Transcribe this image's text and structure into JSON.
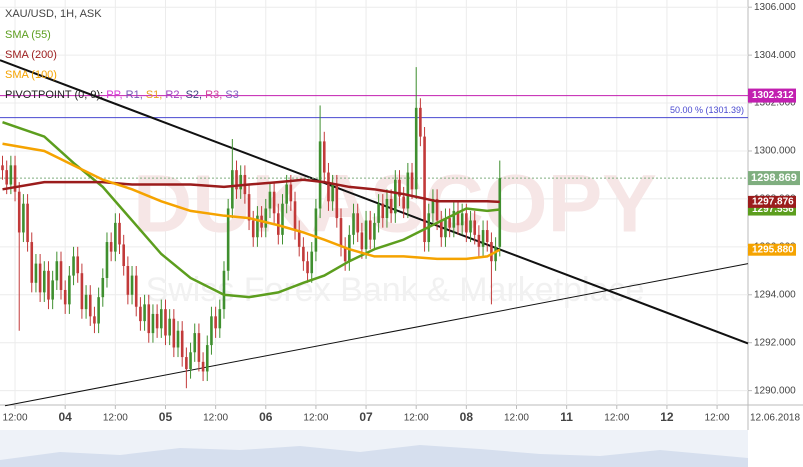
{
  "chart_data": {
    "type": "candlestick",
    "title": "XAU/USD, 1H, ASK",
    "up_color": "#3f8f2f",
    "down_color": "#c23a3a",
    "x": [
      -3,
      -2,
      -1,
      0,
      1,
      2,
      3,
      4,
      5,
      6,
      7,
      8,
      9,
      10,
      11,
      12,
      13,
      14,
      15,
      16,
      17,
      18,
      19,
      20,
      21,
      22,
      23,
      24,
      25,
      26,
      27,
      28,
      29,
      30,
      31,
      32,
      33,
      34,
      35,
      36,
      37,
      38,
      39,
      40,
      41,
      42,
      43,
      44,
      45,
      46,
      47,
      48,
      49,
      50,
      51,
      52,
      53,
      54,
      55,
      56,
      57,
      58,
      59,
      60,
      61,
      62,
      63,
      64,
      65,
      66,
      67,
      68,
      69,
      70,
      71,
      72,
      73,
      74,
      75,
      76,
      77,
      78,
      79,
      80,
      81,
      82,
      83,
      84,
      85,
      86,
      87,
      88,
      89,
      90,
      91,
      92,
      93,
      94,
      95,
      96,
      97,
      98,
      99,
      100,
      101,
      102,
      103,
      104,
      105,
      106,
      107,
      108,
      109,
      110,
      111,
      112,
      113,
      114,
      115,
      116
    ],
    "open": [
      1299.4,
      1299.2,
      1298.6,
      1299.4,
      1298.3,
      1296.6,
      1297.8,
      1296.2,
      1294.5,
      1295.3,
      1294.1,
      1295.0,
      1293.8,
      1294.6,
      1295.4,
      1294.2,
      1293.6,
      1294.8,
      1295.6,
      1294.9,
      1293.4,
      1294.0,
      1293.1,
      1292.8,
      1293.9,
      1294.7,
      1296.2,
      1295.8,
      1297.0,
      1296.1,
      1295.2,
      1294.0,
      1294.8,
      1293.5,
      1292.9,
      1293.6,
      1292.4,
      1293.2,
      1292.6,
      1293.4,
      1292.3,
      1293.0,
      1291.8,
      1292.5,
      1291.4,
      1290.9,
      1291.6,
      1292.4,
      1291.2,
      1290.8,
      1291.9,
      1293.1,
      1292.6,
      1293.4,
      1295.0,
      1297.6,
      1299.2,
      1298.4,
      1299.0,
      1298.2,
      1297.1,
      1296.4,
      1297.3,
      1296.8,
      1297.6,
      1298.3,
      1297.4,
      1296.5,
      1297.8,
      1298.6,
      1297.9,
      1296.7,
      1296.0,
      1295.4,
      1294.9,
      1295.8,
      1297.6,
      1300.4,
      1299.1,
      1297.9,
      1298.6,
      1297.2,
      1296.0,
      1295.4,
      1296.5,
      1297.4,
      1296.6,
      1295.9,
      1297.1,
      1296.3,
      1297.0,
      1297.8,
      1297.2,
      1298.0,
      1297.4,
      1298.8,
      1298.1,
      1297.6,
      1299.1,
      1298.4,
      1301.8,
      1300.6,
      1296.2,
      1297.4,
      1298.0,
      1297.1,
      1296.4,
      1297.2,
      1296.8,
      1297.5,
      1296.9,
      1297.4,
      1296.6,
      1297.1,
      1296.5,
      1296.0,
      1296.7,
      1296.2,
      1295.4,
      1296.0
    ],
    "high": [
      1299.8,
      1299.6,
      1299.8,
      1299.8,
      1298.7,
      1298.2,
      1298.2,
      1296.6,
      1295.7,
      1295.7,
      1295.4,
      1295.4,
      1295.0,
      1295.8,
      1295.8,
      1294.6,
      1295.2,
      1296.0,
      1296.0,
      1295.3,
      1294.4,
      1294.4,
      1293.5,
      1294.3,
      1295.1,
      1296.6,
      1296.6,
      1297.4,
      1297.4,
      1296.5,
      1295.6,
      1295.2,
      1295.2,
      1293.9,
      1294.0,
      1294.0,
      1293.6,
      1293.6,
      1293.8,
      1293.8,
      1293.4,
      1293.4,
      1292.9,
      1292.9,
      1291.8,
      1292.0,
      1292.8,
      1292.8,
      1291.6,
      1292.3,
      1293.5,
      1293.5,
      1293.8,
      1295.4,
      1298.0,
      1300.5,
      1299.6,
      1299.4,
      1299.4,
      1298.6,
      1297.5,
      1297.7,
      1297.7,
      1298.0,
      1298.7,
      1298.7,
      1297.8,
      1298.2,
      1299.0,
      1299.0,
      1298.3,
      1297.1,
      1296.4,
      1295.8,
      1296.2,
      1298.0,
      1301.9,
      1300.8,
      1299.5,
      1299.0,
      1299.0,
      1297.6,
      1296.4,
      1296.9,
      1297.8,
      1297.8,
      1297.0,
      1297.5,
      1297.5,
      1297.4,
      1298.2,
      1298.2,
      1298.4,
      1298.4,
      1299.2,
      1299.2,
      1298.5,
      1299.5,
      1299.5,
      1303.5,
      1302.2,
      1301.0,
      1297.8,
      1298.4,
      1298.4,
      1297.5,
      1297.6,
      1297.6,
      1297.9,
      1297.9,
      1297.8,
      1297.8,
      1297.5,
      1297.5,
      1296.9,
      1297.1,
      1297.1,
      1296.6,
      1296.4,
      1299.6
    ],
    "low": [
      1298.8,
      1298.2,
      1298.2,
      1297.9,
      1292.5,
      1296.2,
      1295.8,
      1294.1,
      1294.1,
      1293.7,
      1293.7,
      1293.4,
      1293.4,
      1294.2,
      1293.8,
      1293.2,
      1293.2,
      1294.4,
      1294.5,
      1293.0,
      1293.0,
      1292.7,
      1292.4,
      1292.4,
      1293.5,
      1294.3,
      1295.4,
      1295.4,
      1295.7,
      1294.8,
      1293.6,
      1293.6,
      1293.1,
      1292.5,
      1292.5,
      1292.0,
      1292.0,
      1292.2,
      1292.2,
      1291.9,
      1291.9,
      1291.4,
      1291.4,
      1291.0,
      1290.1,
      1290.5,
      1291.2,
      1290.8,
      1290.4,
      1290.4,
      1291.5,
      1292.2,
      1292.2,
      1293.0,
      1294.6,
      1297.2,
      1298.0,
      1298.0,
      1297.8,
      1296.7,
      1296.0,
      1296.0,
      1296.4,
      1296.4,
      1297.2,
      1297.0,
      1296.1,
      1296.1,
      1297.4,
      1297.5,
      1296.3,
      1295.6,
      1295.0,
      1294.5,
      1294.5,
      1295.4,
      1297.2,
      1298.7,
      1297.5,
      1297.5,
      1296.8,
      1295.6,
      1295.0,
      1295.0,
      1296.1,
      1296.2,
      1295.5,
      1295.5,
      1295.9,
      1295.9,
      1296.6,
      1296.8,
      1296.8,
      1297.0,
      1297.0,
      1297.7,
      1297.2,
      1297.2,
      1298.0,
      1298.0,
      1300.2,
      1295.8,
      1295.8,
      1297.0,
      1296.7,
      1296.0,
      1296.0,
      1296.4,
      1296.4,
      1296.5,
      1296.5,
      1296.2,
      1296.2,
      1296.1,
      1295.6,
      1295.6,
      1295.8,
      1293.6,
      1295.0,
      1295.6
    ],
    "close": [
      1299.2,
      1298.6,
      1299.4,
      1298.3,
      1296.6,
      1297.8,
      1296.2,
      1294.5,
      1295.3,
      1294.1,
      1295.0,
      1293.8,
      1294.6,
      1295.4,
      1294.2,
      1293.6,
      1294.8,
      1295.6,
      1294.9,
      1293.4,
      1294.0,
      1293.1,
      1292.8,
      1293.9,
      1294.7,
      1296.2,
      1295.8,
      1297.0,
      1296.1,
      1295.2,
      1294.0,
      1294.8,
      1293.5,
      1292.9,
      1293.6,
      1292.4,
      1293.2,
      1292.6,
      1293.4,
      1292.3,
      1293.0,
      1291.8,
      1292.5,
      1291.4,
      1290.9,
      1291.6,
      1292.4,
      1291.2,
      1290.8,
      1291.9,
      1293.1,
      1292.6,
      1293.4,
      1295.0,
      1297.6,
      1299.2,
      1298.4,
      1299.0,
      1298.2,
      1297.1,
      1296.4,
      1297.3,
      1296.8,
      1297.6,
      1298.3,
      1297.4,
      1296.5,
      1297.8,
      1298.6,
      1297.9,
      1296.7,
      1296.0,
      1295.4,
      1294.9,
      1295.8,
      1297.6,
      1300.4,
      1299.1,
      1297.9,
      1298.6,
      1297.2,
      1296.0,
      1295.4,
      1296.5,
      1297.4,
      1296.6,
      1295.9,
      1297.1,
      1296.3,
      1297.0,
      1297.8,
      1297.2,
      1298.0,
      1297.4,
      1298.8,
      1298.1,
      1297.6,
      1299.1,
      1298.4,
      1301.8,
      1300.6,
      1296.2,
      1297.4,
      1298.0,
      1297.1,
      1296.4,
      1297.2,
      1296.8,
      1297.5,
      1296.9,
      1297.4,
      1296.6,
      1297.1,
      1296.5,
      1296.0,
      1296.7,
      1296.2,
      1295.4,
      1296.0,
      1298.869
    ],
    "series": [
      {
        "name": "SMA (55)",
        "color": "#5c9e1e",
        "x": [
          -3,
          7,
          14,
          21,
          28,
          35,
          42,
          50,
          56,
          63,
          69,
          74,
          80,
          86,
          93,
          101,
          108,
          113,
          116
        ],
        "values": [
          1301.2,
          1300.6,
          1299.5,
          1298.5,
          1297.1,
          1295.7,
          1294.7,
          1294.0,
          1293.9,
          1294.1,
          1294.5,
          1294.8,
          1295.4,
          1295.9,
          1296.3,
          1297.0,
          1297.6,
          1297.5,
          1297.556
        ],
        "end_label": "1297.556"
      },
      {
        "name": "SMA (200)",
        "color": "#9b1c1c",
        "x": [
          -3,
          7,
          14,
          21,
          28,
          35,
          42,
          50,
          56,
          63,
          69,
          74,
          80,
          86,
          93,
          101,
          108,
          113,
          116
        ],
        "values": [
          1298.4,
          1298.7,
          1298.7,
          1298.7,
          1298.6,
          1298.6,
          1298.6,
          1298.5,
          1298.6,
          1298.7,
          1298.8,
          1298.7,
          1298.5,
          1298.4,
          1298.2,
          1297.9,
          1297.9,
          1297.9,
          1297.876
        ],
        "end_label": "1297.876"
      },
      {
        "name": "SMA (100)",
        "color": "#f5a300",
        "x": [
          -3,
          7,
          14,
          21,
          28,
          35,
          42,
          50,
          56,
          63,
          69,
          74,
          80,
          86,
          93,
          101,
          108,
          113,
          116
        ],
        "values": [
          1300.3,
          1300.0,
          1299.4,
          1298.8,
          1298.4,
          1297.9,
          1297.5,
          1297.3,
          1297.2,
          1296.9,
          1296.6,
          1296.3,
          1295.9,
          1295.6,
          1295.6,
          1295.5,
          1295.5,
          1295.6,
          1295.88
        ],
        "end_label": "1295.880"
      }
    ],
    "pivot_legend": [
      {
        "text": "PIVOTPOINT (0, 9): ",
        "color": "#222222"
      },
      {
        "text": "PP, ",
        "color": "#d63ad6"
      },
      {
        "text": "R1, ",
        "color": "#7a55b5"
      },
      {
        "text": "S1, ",
        "color": "#e8a020"
      },
      {
        "text": "R2, ",
        "color": "#a040c0"
      },
      {
        "text": "S2, ",
        "color": "#404080"
      },
      {
        "text": "R3, ",
        "color": "#d040a0"
      },
      {
        "text": "S3",
        "color": "#8060c0"
      }
    ],
    "hlines": [
      {
        "value": 1302.312,
        "label": "1302.312",
        "color": "#c21fb0",
        "boxed": true
      },
      {
        "value": 1301.39,
        "label": "50.00 % (1301.39)",
        "color": "#4a4ad0",
        "boxed": false
      }
    ],
    "price_line": {
      "value": 1298.869,
      "label": "1298.869",
      "color": "#7fae7f"
    },
    "trendlines": [
      {
        "x": [
          -3.6,
          175.4
        ],
        "y": [
          1303.79,
          1291.97
        ],
        "color": "#111111",
        "width": 2
      },
      {
        "x": [
          -2.4,
          175.4
        ],
        "y": [
          1289.37,
          1295.3
        ],
        "color": "#111111",
        "width": 1
      }
    ],
    "watermark": {
      "title": "DUKASCOPY",
      "subtitle": "Swiss Forex Bank & Marketplace"
    },
    "xlim": [
      -3.6,
      175.4
    ],
    "xticks": [
      {
        "value": 0,
        "label": "12:00"
      },
      {
        "value": 12,
        "label": "04"
      },
      {
        "value": 24,
        "label": "12:00"
      },
      {
        "value": 36,
        "label": "05"
      },
      {
        "value": 48,
        "label": "12:00"
      },
      {
        "value": 60,
        "label": "06"
      },
      {
        "value": 72,
        "label": "12:00"
      },
      {
        "value": 84,
        "label": "07"
      },
      {
        "value": 96,
        "label": "12:00"
      },
      {
        "value": 108,
        "label": "08"
      },
      {
        "value": 120,
        "label": "12:00"
      },
      {
        "value": 132,
        "label": "11"
      },
      {
        "value": 144,
        "label": "12:00"
      },
      {
        "value": 156,
        "label": "12"
      },
      {
        "value": 168,
        "label": "12:00"
      }
    ],
    "x_end_label": "12.06.2018",
    "ylim": [
      1289.4,
      1306.3
    ],
    "yticks": [
      {
        "value": 1290,
        "label": "1290.000"
      },
      {
        "value": 1292,
        "label": "1292.000"
      },
      {
        "value": 1294,
        "label": "1294.000"
      },
      {
        "value": 1296,
        "label": "1296.000"
      },
      {
        "value": 1298,
        "label": "1298.000"
      },
      {
        "value": 1300,
        "label": "1300.000"
      },
      {
        "value": 1302,
        "label": "1302.000"
      },
      {
        "value": 1304,
        "label": "1304.000"
      },
      {
        "value": 1306,
        "label": "1306.000"
      }
    ],
    "grid": true
  }
}
